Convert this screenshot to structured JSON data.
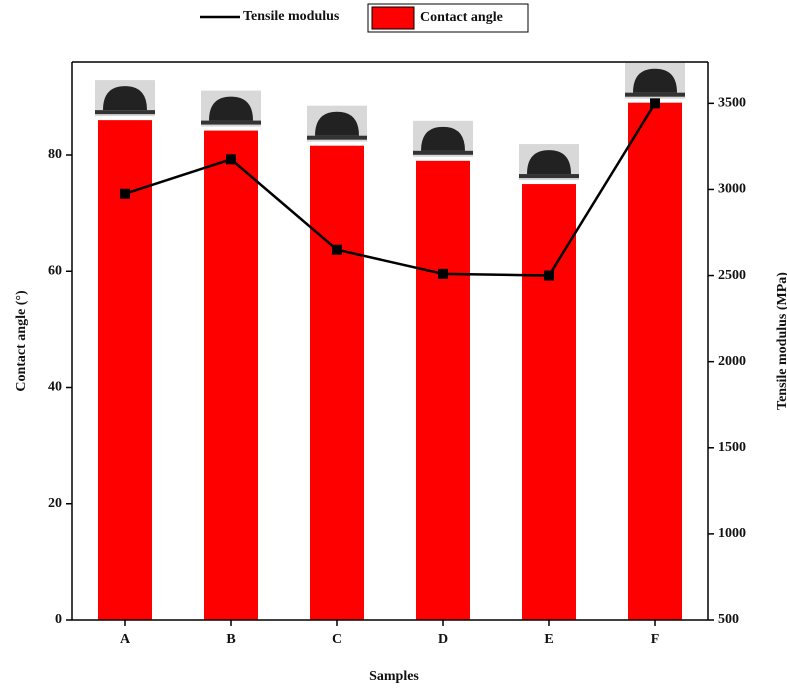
{
  "chart_data": {
    "type": "bar_line",
    "categories": [
      "A",
      "B",
      "C",
      "D",
      "E",
      "F"
    ],
    "series": [
      {
        "name": "Contact angle",
        "color": "#ff0000",
        "values": [
          86,
          84.2,
          81.6,
          79,
          75,
          89
        ]
      },
      {
        "name": "Tensile modulus",
        "color": "#000000",
        "axis": "y2",
        "values": [
          2975,
          3175,
          2650,
          2510,
          2500,
          3500
        ]
      }
    ],
    "x_label": "Samples",
    "y_label": "Contact angle (°)",
    "y2_label": "Tensile modulus (MPa)",
    "ylim": [
      0,
      96
    ],
    "yticks": [
      0,
      20,
      40,
      60,
      80
    ],
    "y2lim": [
      500,
      3740
    ],
    "y2ticks": [
      500,
      1000,
      1500,
      2000,
      2500,
      3000,
      3500
    ],
    "legend": "top"
  }
}
